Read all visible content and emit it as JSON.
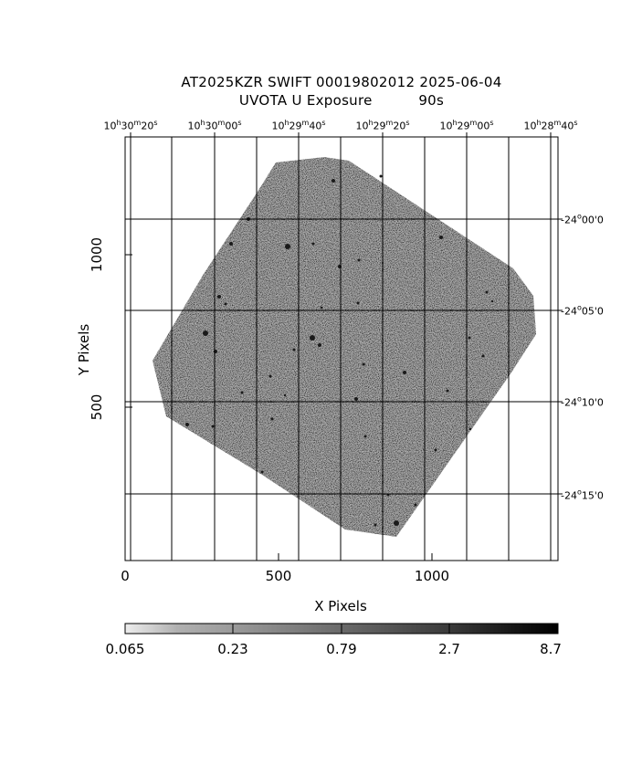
{
  "title": {
    "line1": "AT2025KZR SWIFT 00019802012 2025-06-04",
    "line2": "UVOTA U Exposure          90s"
  },
  "ra_labels": [
    {
      "h": "10",
      "m": "30",
      "s": "20"
    },
    {
      "h": "10",
      "m": "30",
      "s": "00"
    },
    {
      "h": "10",
      "m": "29",
      "s": "40"
    },
    {
      "h": "10",
      "m": "29",
      "s": "20"
    },
    {
      "h": "10",
      "m": "29",
      "s": "00"
    },
    {
      "h": "10",
      "m": "28",
      "s": "40"
    }
  ],
  "dec_labels": [
    {
      "d": "-24",
      "m": "00",
      "s": "0"
    },
    {
      "d": "-24",
      "m": "05",
      "s": "0"
    },
    {
      "d": "-24",
      "m": "10",
      "s": "0"
    },
    {
      "d": "-24",
      "m": "15",
      "s": "0"
    }
  ],
  "x_axis": {
    "label": "X Pixels",
    "ticks": [
      "0",
      "500",
      "1000"
    ]
  },
  "y_axis": {
    "label": "Y Pixels",
    "ticks": [
      "500",
      "1000"
    ]
  },
  "colorbar": {
    "ticks": [
      "0.065",
      "0.23",
      "0.79",
      "2.7",
      "8.7"
    ]
  },
  "colors": {
    "field": "#a9a9a9",
    "grid": "#000000",
    "background": "#ffffff"
  }
}
